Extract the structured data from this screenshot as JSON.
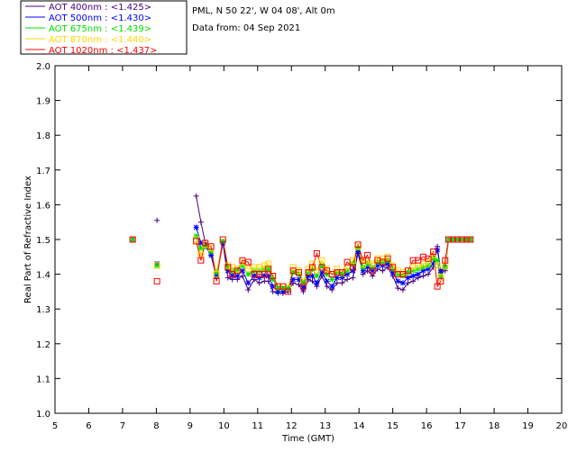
{
  "header": {
    "location": "PML, N 50 22', W 04 08', Alt 0m",
    "date": "Data from: 04 Sep 2021"
  },
  "legend": [
    {
      "label": "AOT  400nm : <1.425>",
      "color": "#4b0082"
    },
    {
      "label": "AOT  500nm : <1.430>",
      "color": "#0000ff"
    },
    {
      "label": "AOT  675nm : <1.439>",
      "color": "#00e000"
    },
    {
      "label": "AOT  870nm : <1.440>",
      "color": "#ffd700"
    },
    {
      "label": "AOT 1020nm : <1.437>",
      "color": "#ff0000"
    }
  ],
  "chart_data": {
    "type": "scatter",
    "xlabel": "Time (GMT)",
    "ylabel": "Real Part of Refractive Index",
    "xlim": [
      5,
      20
    ],
    "ylim": [
      1.0,
      2.0
    ],
    "xticks": [
      5,
      6,
      7,
      8,
      9,
      10,
      11,
      12,
      13,
      14,
      15,
      16,
      17,
      18,
      19,
      20
    ],
    "yticks": [
      1.0,
      1.1,
      1.2,
      1.3,
      1.4,
      1.5,
      1.6,
      1.7,
      1.8,
      1.9,
      2.0
    ],
    "x": [
      7.3,
      8.02,
      9.18,
      9.32,
      9.45,
      9.62,
      9.78,
      9.97,
      10.12,
      10.25,
      10.4,
      10.55,
      10.72,
      10.9,
      11.05,
      11.2,
      11.32,
      11.45,
      11.6,
      11.75,
      11.9,
      12.05,
      12.22,
      12.35,
      12.5,
      12.62,
      12.75,
      12.9,
      13.05,
      13.2,
      13.35,
      13.5,
      13.65,
      13.82,
      13.97,
      14.12,
      14.25,
      14.4,
      14.55,
      14.7,
      14.85,
      15.0,
      15.15,
      15.3,
      15.45,
      15.6,
      15.75,
      15.9,
      16.05,
      16.2,
      16.32,
      16.42,
      16.55,
      16.65,
      16.78,
      16.92,
      17.05,
      17.18,
      17.3
    ],
    "series": [
      {
        "name": "AOT  400nm : <1.425>",
        "marker": "plus",
        "color": "#4b0082",
        "connect_from": 2,
        "values": [
          1.5,
          1.555,
          1.625,
          1.55,
          1.49,
          1.455,
          1.39,
          1.49,
          1.39,
          1.385,
          1.385,
          1.395,
          1.355,
          1.385,
          1.375,
          1.38,
          1.38,
          1.35,
          1.345,
          1.345,
          1.35,
          1.375,
          1.37,
          1.35,
          1.385,
          1.38,
          1.365,
          1.395,
          1.365,
          1.355,
          1.375,
          1.375,
          1.385,
          1.39,
          1.46,
          1.4,
          1.41,
          1.395,
          1.415,
          1.41,
          1.42,
          1.395,
          1.36,
          1.355,
          1.375,
          1.38,
          1.39,
          1.395,
          1.4,
          1.42,
          1.48,
          1.405,
          1.41,
          1.5,
          1.5,
          1.5,
          1.5,
          1.5,
          1.5
        ]
      },
      {
        "name": "AOT  500nm : <1.430>",
        "marker": "star",
        "color": "#0000ff",
        "connect_from": 2,
        "values": [
          1.5,
          1.43,
          1.535,
          1.49,
          1.48,
          1.455,
          1.395,
          1.49,
          1.41,
          1.395,
          1.395,
          1.41,
          1.375,
          1.395,
          1.39,
          1.395,
          1.395,
          1.365,
          1.35,
          1.35,
          1.355,
          1.385,
          1.385,
          1.36,
          1.395,
          1.395,
          1.375,
          1.405,
          1.38,
          1.365,
          1.39,
          1.39,
          1.4,
          1.41,
          1.465,
          1.41,
          1.42,
          1.41,
          1.425,
          1.425,
          1.43,
          1.405,
          1.38,
          1.375,
          1.39,
          1.395,
          1.4,
          1.41,
          1.415,
          1.43,
          1.47,
          1.41,
          1.42,
          1.5,
          1.5,
          1.5,
          1.5,
          1.5,
          1.5
        ]
      },
      {
        "name": "AOT  675nm : <1.439>",
        "marker": "star",
        "color": "#00e000",
        "connect_from": 2,
        "values": [
          1.5,
          1.425,
          1.51,
          1.475,
          1.48,
          1.465,
          1.405,
          1.495,
          1.42,
          1.41,
          1.41,
          1.425,
          1.4,
          1.41,
          1.41,
          1.415,
          1.415,
          1.385,
          1.36,
          1.36,
          1.36,
          1.405,
          1.4,
          1.375,
          1.405,
          1.415,
          1.395,
          1.425,
          1.4,
          1.385,
          1.405,
          1.4,
          1.41,
          1.43,
          1.475,
          1.42,
          1.43,
          1.42,
          1.435,
          1.435,
          1.44,
          1.415,
          1.4,
          1.395,
          1.405,
          1.41,
          1.415,
          1.42,
          1.425,
          1.445,
          1.44,
          1.395,
          1.42,
          1.5,
          1.5,
          1.5,
          1.5,
          1.5,
          1.5
        ]
      },
      {
        "name": "AOT  870nm : <1.440>",
        "marker": "square",
        "color": "#ffd700",
        "connect_from": 2,
        "values": [
          1.5,
          1.425,
          1.5,
          1.455,
          1.485,
          1.475,
          1.4,
          1.5,
          1.425,
          1.42,
          1.415,
          1.435,
          1.415,
          1.42,
          1.42,
          1.425,
          1.43,
          1.395,
          1.365,
          1.365,
          1.36,
          1.42,
          1.41,
          1.38,
          1.415,
          1.43,
          1.41,
          1.44,
          1.415,
          1.4,
          1.415,
          1.405,
          1.42,
          1.44,
          1.48,
          1.43,
          1.44,
          1.43,
          1.445,
          1.445,
          1.45,
          1.425,
          1.41,
          1.405,
          1.41,
          1.42,
          1.425,
          1.43,
          1.435,
          1.455,
          1.425,
          1.39,
          1.425,
          1.5,
          1.5,
          1.5,
          1.5,
          1.5,
          1.5
        ]
      },
      {
        "name": "AOT 1020nm : <1.437>",
        "marker": "square",
        "color": "#ff0000",
        "connect_from": 2,
        "values": [
          1.5,
          1.38,
          1.495,
          1.44,
          1.49,
          1.48,
          1.38,
          1.5,
          1.42,
          1.4,
          1.41,
          1.44,
          1.435,
          1.4,
          1.4,
          1.4,
          1.415,
          1.395,
          1.365,
          1.365,
          1.35,
          1.41,
          1.405,
          1.365,
          1.405,
          1.42,
          1.46,
          1.42,
          1.41,
          1.4,
          1.405,
          1.405,
          1.435,
          1.42,
          1.485,
          1.44,
          1.455,
          1.41,
          1.44,
          1.435,
          1.445,
          1.42,
          1.4,
          1.4,
          1.41,
          1.44,
          1.44,
          1.45,
          1.445,
          1.465,
          1.365,
          1.38,
          1.44,
          1.5,
          1.5,
          1.5,
          1.5,
          1.5,
          1.5
        ]
      }
    ]
  }
}
